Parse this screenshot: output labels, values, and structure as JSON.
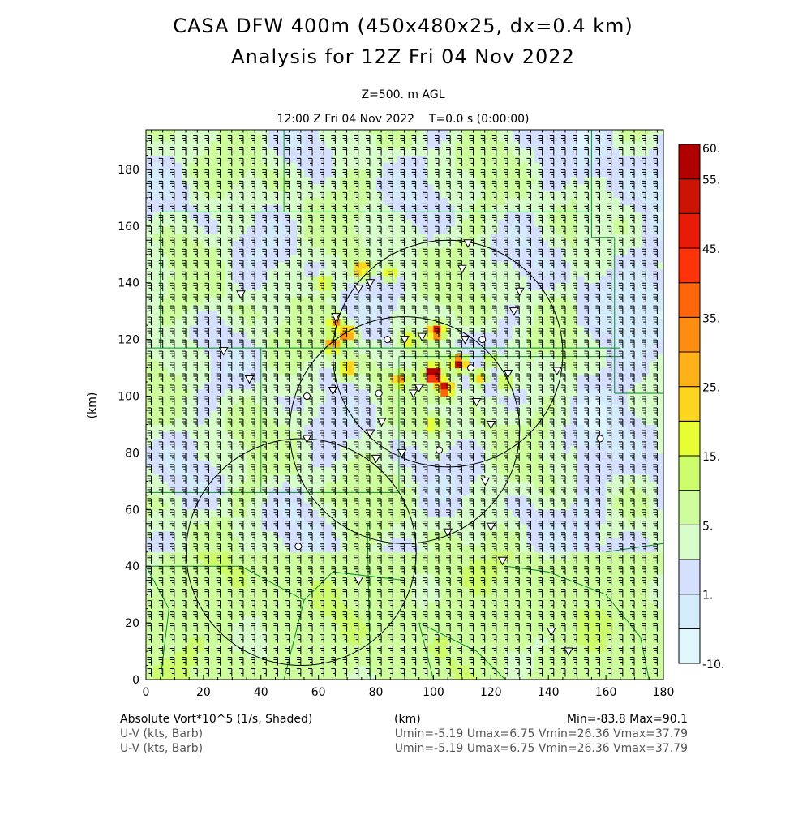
{
  "header": {
    "title_line1": "CASA DFW 400m (450x480x25, dx=0.4 km)",
    "title_line2": "Analysis for 12Z Fri 04 Nov 2022",
    "level": "Z=500. m AGL",
    "time": "12:00 Z Fri 04 Nov 2022    T=0.0 s (0:00:00)"
  },
  "footer": {
    "field_label": "Absolute Vort*10^5 (1/s, Shaded)",
    "xunit": "(km)",
    "minmax": "Min=-83.8 Max=90.1",
    "barb1_label": "U-V (kts, Barb)",
    "barb1_stats": "Umin=-5.19 Umax=6.75 Vmin=26.36 Vmax=37.79",
    "barb2_label": "U-V (kts, Barb)",
    "barb2_stats": "Umin=-5.19 Umax=6.75 Vmin=26.36 Vmax=37.79"
  },
  "chart_data": {
    "type": "heatmap",
    "title": "CASA DFW 400m (450x480x25, dx=0.4 km)",
    "xlabel": "(km)",
    "ylabel": "(km)",
    "xlim": [
      0,
      180
    ],
    "ylim": [
      0,
      194
    ],
    "xticks": [
      "0",
      "20",
      "40",
      "60",
      "80",
      "100",
      "120",
      "140",
      "160",
      "180"
    ],
    "yticks": [
      "0",
      "20",
      "40",
      "60",
      "80",
      "100",
      "120",
      "140",
      "160",
      "180"
    ],
    "colorbar": {
      "levels": [
        -10,
        -1,
        1,
        3,
        5,
        10,
        15,
        20,
        25,
        30,
        35,
        40,
        45,
        50,
        55,
        60
      ],
      "labels": [
        "60.",
        "55.",
        "45.",
        "35.",
        "25.",
        "15.",
        "5.",
        "1.",
        "-10."
      ],
      "label_values": [
        60,
        55,
        45,
        35,
        25,
        15,
        5,
        1,
        -10
      ],
      "colors": [
        "#e0f6fd",
        "#d3ebfb",
        "#d4e0fd",
        "#d7fdcb",
        "#cefd9d",
        "#cdfc6d",
        "#e8fe34",
        "#ffd61f",
        "#ffb11a",
        "#ff8d14",
        "#ff660c",
        "#ff330a",
        "#e81a08",
        "#cc1405",
        "#b00000"
      ]
    },
    "wind": {
      "u_kts": [
        -5.19,
        6.75
      ],
      "v_kts": [
        26.36,
        37.79
      ]
    },
    "hotspots_km": [
      [
        100,
        108,
        75
      ],
      [
        109,
        112,
        55
      ],
      [
        104,
        103,
        52
      ],
      [
        88,
        106,
        30
      ],
      [
        70,
        122,
        38
      ],
      [
        65,
        118,
        32
      ],
      [
        75,
        145,
        26
      ],
      [
        85,
        144,
        22
      ],
      [
        101,
        123,
        48
      ],
      [
        70,
        110,
        26
      ],
      [
        116,
        107,
        24
      ],
      [
        66,
        126,
        26
      ],
      [
        92,
        120,
        20
      ],
      [
        120,
        113,
        18
      ],
      [
        62,
        140,
        20
      ],
      [
        100,
        90,
        18
      ],
      [
        125,
        105,
        16
      ]
    ],
    "range_rings_km": [
      [
        105,
        115,
        40
      ],
      [
        90,
        88,
        40
      ],
      [
        54,
        45,
        40
      ]
    ],
    "stations_km": [
      [
        33,
        136
      ],
      [
        27,
        116
      ],
      [
        36,
        106
      ],
      [
        56,
        100
      ],
      [
        65,
        102
      ],
      [
        66,
        128
      ],
      [
        74,
        138
      ],
      [
        78,
        140
      ],
      [
        84,
        120
      ],
      [
        90,
        120
      ],
      [
        96,
        121
      ],
      [
        111,
        120
      ],
      [
        110,
        145
      ],
      [
        117,
        120
      ],
      [
        128,
        130
      ],
      [
        130,
        137
      ],
      [
        126,
        108
      ],
      [
        143,
        109
      ],
      [
        113,
        110
      ],
      [
        115,
        98
      ],
      [
        120,
        90
      ],
      [
        95,
        103
      ],
      [
        93,
        101
      ],
      [
        81,
        101
      ],
      [
        82,
        91
      ],
      [
        78,
        87
      ],
      [
        80,
        78
      ],
      [
        89,
        80
      ],
      [
        102,
        81
      ],
      [
        56,
        85
      ],
      [
        118,
        70
      ],
      [
        105,
        52
      ],
      [
        120,
        54
      ],
      [
        53,
        47
      ],
      [
        74,
        35
      ],
      [
        124,
        42
      ],
      [
        141,
        17
      ],
      [
        147,
        10
      ],
      [
        158,
        85
      ],
      [
        112,
        154
      ]
    ]
  }
}
